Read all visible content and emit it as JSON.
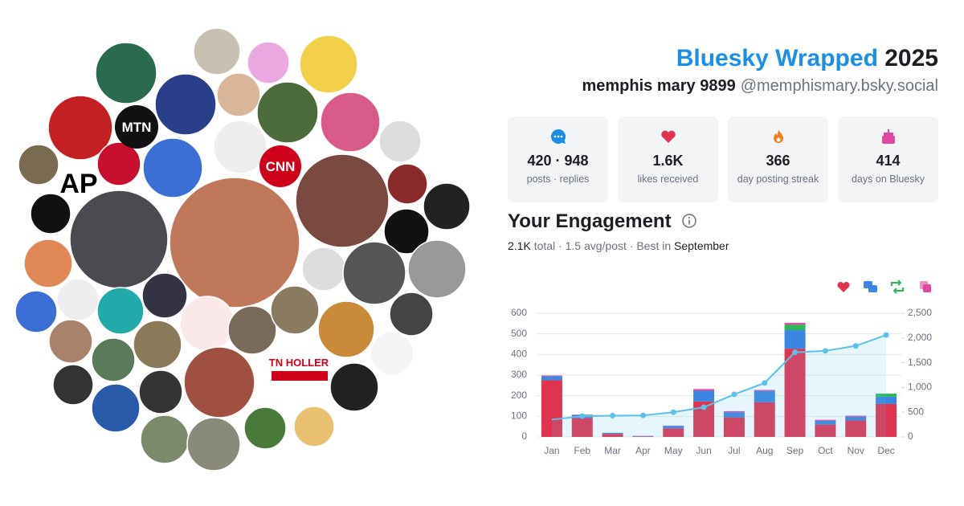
{
  "header": {
    "title": "Bluesky Wrapped",
    "year": "2025",
    "name": "memphis mary 9899",
    "handle": "@memphismary.bsky.social"
  },
  "avatars": {
    "labels": [
      "AP",
      "MTN",
      "CNN",
      "TN HOLLER"
    ]
  },
  "stats": [
    {
      "value": "420 · 948",
      "label": "posts · replies"
    },
    {
      "value": "1.6K",
      "label": "likes received"
    },
    {
      "value": "366",
      "label": "day posting streak"
    },
    {
      "value": "414",
      "label": "days on Bluesky"
    }
  ],
  "engagement": {
    "title": "Your Engagement",
    "summary": [
      "2.1K",
      "total · 1.5 avg/post · Best in",
      "September"
    ]
  },
  "chart_data": {
    "type": "bar",
    "stacked": true,
    "grid": true,
    "categories": [
      "Jan",
      "Feb",
      "Mar",
      "Apr",
      "May",
      "Jun",
      "Jul",
      "Aug",
      "Sep",
      "Oct",
      "Nov",
      "Dec"
    ],
    "series": [
      {
        "color": "#e0334f",
        "values": [
          275,
          92,
          15,
          3,
          42,
          172,
          95,
          168,
          428,
          60,
          80,
          160
        ]
      },
      {
        "color": "#3a86e0",
        "values": [
          20,
          15,
          5,
          2,
          12,
          52,
          25,
          55,
          90,
          18,
          18,
          35
        ]
      },
      {
        "color": "#2fb55a",
        "values": [
          0,
          0,
          0,
          0,
          0,
          0,
          0,
          0,
          27,
          0,
          0,
          15
        ]
      },
      {
        "color": "#e0479e",
        "values": [
          3,
          1,
          0,
          0,
          1,
          8,
          5,
          5,
          8,
          5,
          5,
          0
        ]
      },
      {
        "type": "line",
        "axis": "y2",
        "color": "#5bc0ea",
        "values": [
          350,
          420,
          430,
          435,
          500,
          600,
          860,
          1090,
          1710,
          1740,
          1840,
          2060
        ]
      }
    ],
    "ylim": [
      0,
      600
    ],
    "yticks": [
      0,
      100,
      200,
      300,
      400,
      500,
      600
    ],
    "y2lim": [
      0,
      2500
    ],
    "y2ticks": [
      0,
      500,
      {
        "value": 1000,
        "label": "1,000"
      },
      {
        "value": 1500,
        "label": "1,500"
      },
      {
        "value": 2000,
        "label": "2,000"
      },
      {
        "value": 2500,
        "label": "2,500"
      }
    ]
  }
}
